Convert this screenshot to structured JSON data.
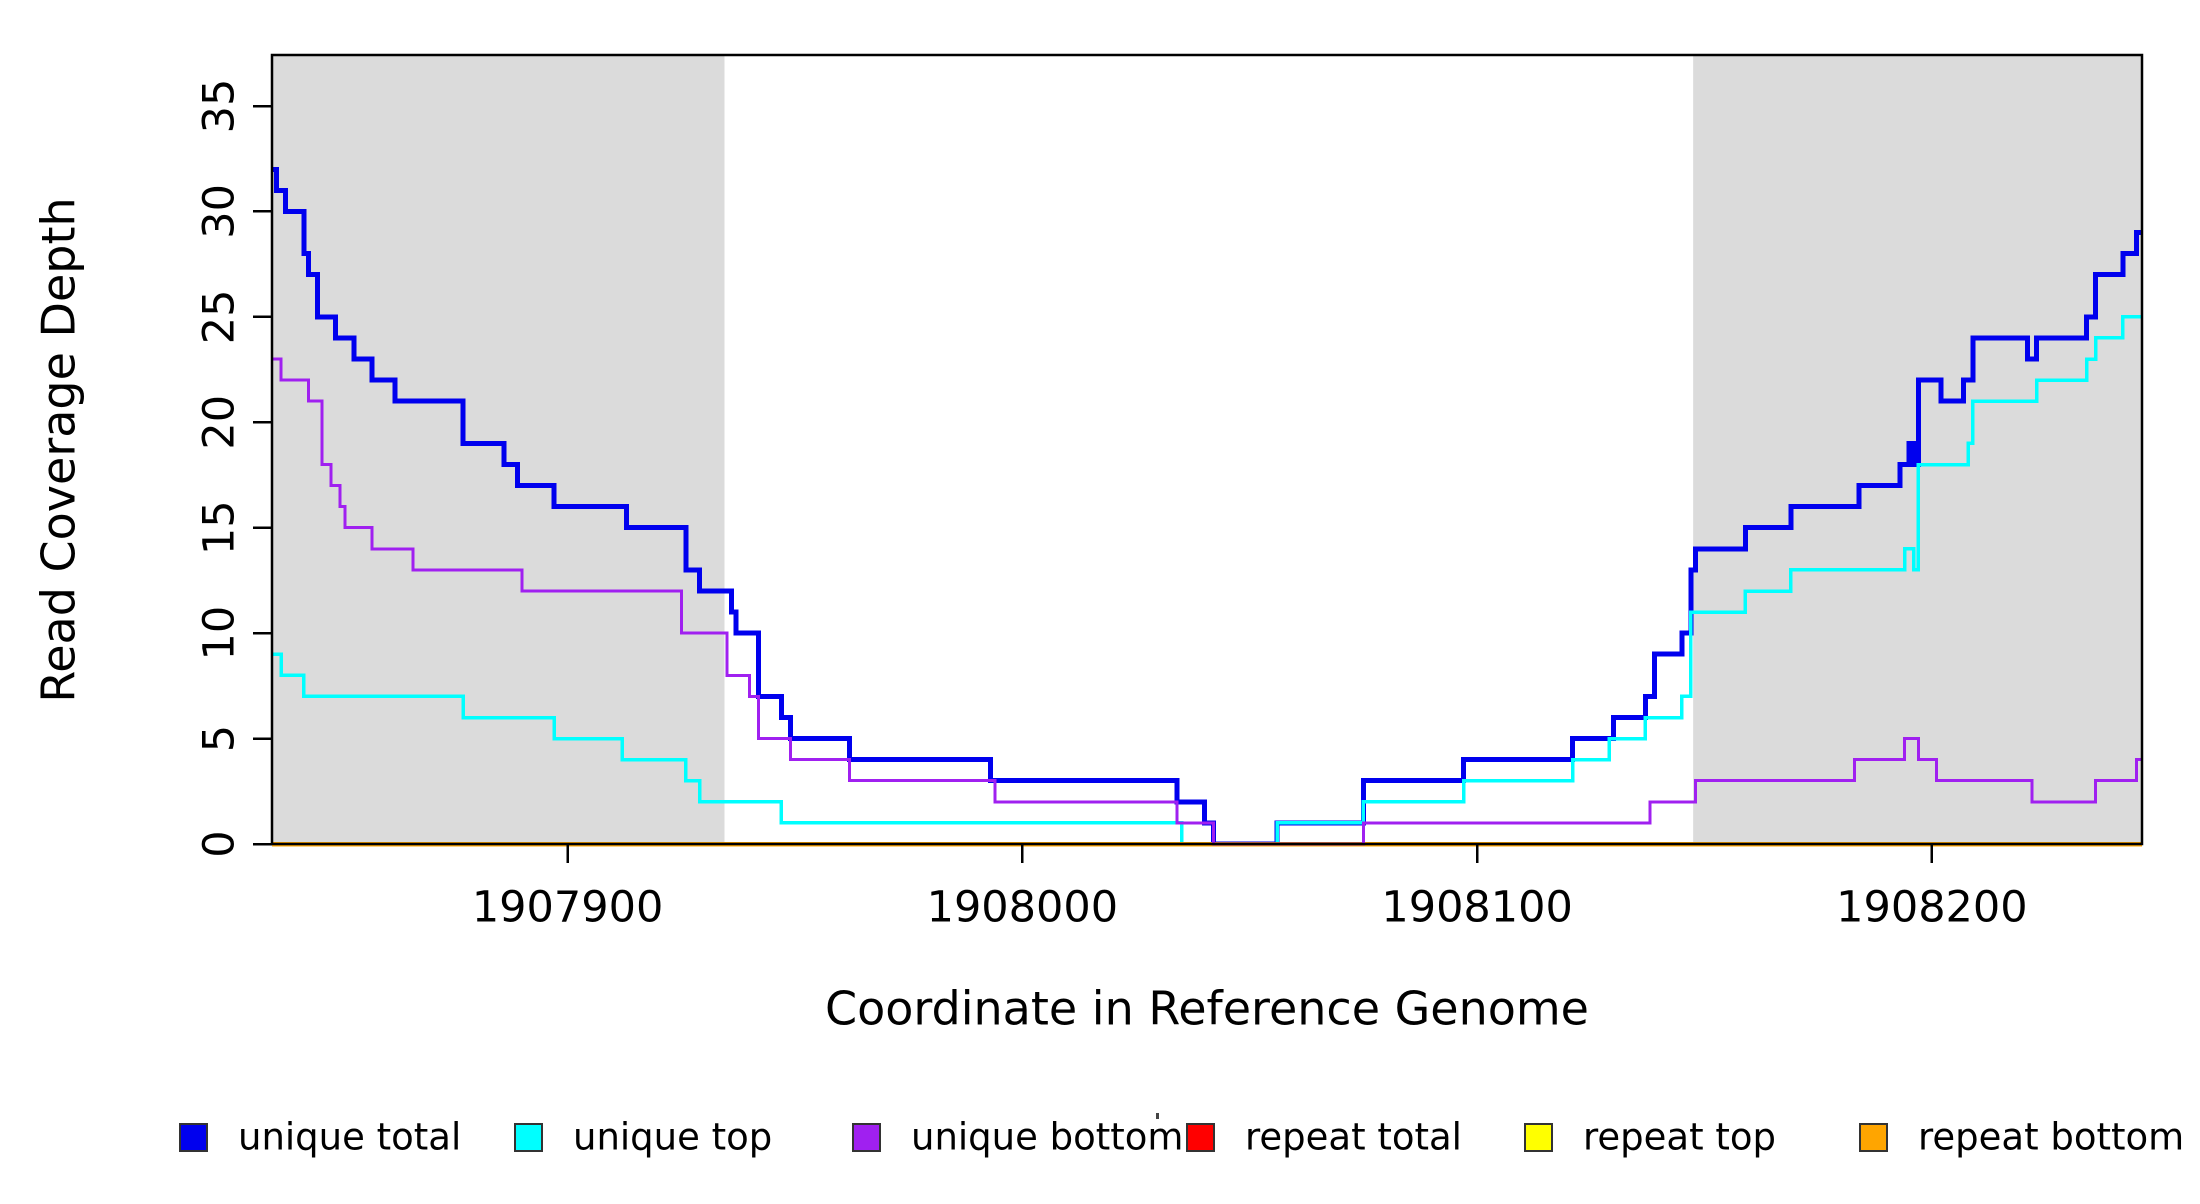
{
  "chart_data": {
    "type": "line",
    "subtype": "step-coverage-plot",
    "title": "",
    "xlabel": "Coordinate in Reference Genome",
    "ylabel": "Read Coverage Depth",
    "xlim": [
      1907835,
      1908246.2
    ],
    "ylim": [
      0,
      37.4
    ],
    "x_ticks": [
      1907900,
      1908000,
      1908100,
      1908200
    ],
    "x_tick_labels": [
      "1907900",
      "1908000",
      "1908100",
      "1908200"
    ],
    "y_ticks": [
      0,
      5,
      10,
      15,
      20,
      25,
      30,
      35
    ],
    "y_tick_labels": [
      "0",
      "5",
      "10",
      "15",
      "20",
      "25",
      "30",
      "35"
    ],
    "grid": false,
    "plot_background": "#ffffff",
    "box_color": "#000000",
    "legend_position": "bottom",
    "shaded_regions": [
      {
        "x0": 1907835,
        "x1": 1907934.5,
        "color": "#dbdbdb",
        "meaning": "shaded-band-left"
      },
      {
        "x0": 1908147.5,
        "x1": 1908246.2,
        "color": "#dbdbdb",
        "meaning": "shaded-band-right"
      }
    ],
    "series": [
      {
        "name": "unique total",
        "color": "#0000EE",
        "width": 5,
        "points": [
          [
            1907835,
            32
          ],
          [
            1907836,
            31
          ],
          [
            1907838,
            30
          ],
          [
            1907842,
            28
          ],
          [
            1907843,
            27
          ],
          [
            1907845,
            25
          ],
          [
            1907849,
            24
          ],
          [
            1907853,
            23
          ],
          [
            1907857,
            22
          ],
          [
            1907862,
            21
          ],
          [
            1907877,
            19
          ],
          [
            1907886,
            18
          ],
          [
            1907889,
            17
          ],
          [
            1907897,
            16
          ],
          [
            1907913,
            15
          ],
          [
            1907926,
            13
          ],
          [
            1907929,
            12
          ],
          [
            1907936,
            11
          ],
          [
            1907937,
            10
          ],
          [
            1907942,
            7
          ],
          [
            1907947,
            6
          ],
          [
            1907949,
            5
          ],
          [
            1907962,
            4
          ],
          [
            1907993,
            3
          ],
          [
            1908034,
            2
          ],
          [
            1908040,
            1
          ],
          [
            1908042,
            0
          ],
          [
            1908056,
            1
          ],
          [
            1908075,
            3
          ],
          [
            1908097,
            4
          ],
          [
            1908121,
            5
          ],
          [
            1908130,
            6
          ],
          [
            1908137,
            7
          ],
          [
            1908139,
            9
          ],
          [
            1908145,
            10
          ],
          [
            1908147,
            13
          ],
          [
            1908148,
            14
          ],
          [
            1908159,
            15
          ],
          [
            1908169,
            16
          ],
          [
            1908184,
            17
          ],
          [
            1908193,
            18
          ],
          [
            1908195,
            19
          ],
          [
            1908196,
            18
          ],
          [
            1908197,
            22
          ],
          [
            1908202,
            21
          ],
          [
            1908207,
            22
          ],
          [
            1908209,
            24
          ],
          [
            1908221,
            23
          ],
          [
            1908223,
            24
          ],
          [
            1908234,
            25
          ],
          [
            1908236,
            27
          ],
          [
            1908242,
            28
          ],
          [
            1908245,
            29
          ]
        ]
      },
      {
        "name": "unique top",
        "color": "#00FFFF",
        "width": 3.5,
        "points": [
          [
            1907835,
            9
          ],
          [
            1907837,
            8
          ],
          [
            1907842,
            7
          ],
          [
            1907877,
            6
          ],
          [
            1907897,
            5
          ],
          [
            1907912,
            4
          ],
          [
            1907926,
            3
          ],
          [
            1907929,
            2
          ],
          [
            1907947,
            1
          ],
          [
            1908035,
            0
          ],
          [
            1908056,
            1
          ],
          [
            1908075,
            2
          ],
          [
            1908097,
            3
          ],
          [
            1908121,
            4
          ],
          [
            1908129,
            5
          ],
          [
            1908137,
            6
          ],
          [
            1908145,
            7
          ],
          [
            1908147,
            11
          ],
          [
            1908159,
            12
          ],
          [
            1908169,
            13
          ],
          [
            1908194,
            14
          ],
          [
            1908196,
            13
          ],
          [
            1908197,
            18
          ],
          [
            1908208,
            19
          ],
          [
            1908209,
            21
          ],
          [
            1908223,
            22
          ],
          [
            1908234,
            23
          ],
          [
            1908236,
            24
          ],
          [
            1908242,
            25
          ]
        ]
      },
      {
        "name": "unique bottom",
        "color": "#A020F0",
        "width": 3,
        "points": [
          [
            1907835,
            23
          ],
          [
            1907837,
            22
          ],
          [
            1907843,
            21
          ],
          [
            1907846,
            18
          ],
          [
            1907848,
            17
          ],
          [
            1907850,
            16
          ],
          [
            1907851,
            15
          ],
          [
            1907857,
            14
          ],
          [
            1907866,
            13
          ],
          [
            1907890,
            12
          ],
          [
            1907925,
            10
          ],
          [
            1907935,
            8
          ],
          [
            1907940,
            7
          ],
          [
            1907942,
            5
          ],
          [
            1907949,
            4
          ],
          [
            1907962,
            3
          ],
          [
            1907994,
            2
          ],
          [
            1908034,
            1
          ],
          [
            1908042,
            0
          ],
          [
            1908075,
            1
          ],
          [
            1908138,
            2
          ],
          [
            1908148,
            3
          ],
          [
            1908183,
            4
          ],
          [
            1908194,
            5
          ],
          [
            1908197,
            4
          ],
          [
            1908201,
            3
          ],
          [
            1908222,
            2
          ],
          [
            1908236,
            3
          ],
          [
            1908245,
            4
          ]
        ]
      },
      {
        "name": "repeat total",
        "color": "#FF0000",
        "width": 3,
        "points": [
          [
            1907835,
            0
          ]
        ]
      },
      {
        "name": "repeat top",
        "color": "#FFFF00",
        "width": 3,
        "points": [
          [
            1907835,
            0
          ]
        ]
      },
      {
        "name": "repeat bottom",
        "color": "#FFA500",
        "width": 4.5,
        "points": [
          [
            1907835,
            0
          ]
        ]
      }
    ],
    "draw_order": [
      "unique total",
      "unique top",
      "repeat total",
      "repeat top",
      "repeat bottom",
      "unique bottom"
    ]
  },
  "legend": {
    "items": [
      {
        "label": "unique total",
        "color": "#0000EE"
      },
      {
        "label": "unique top",
        "color": "#00FFFF"
      },
      {
        "label": "unique bottom",
        "color": "#A020F0"
      },
      {
        "label": "repeat total",
        "color": "#FF0000"
      },
      {
        "label": "repeat top",
        "color": "#FFFF00"
      },
      {
        "label": "repeat bottom",
        "color": "#FFA500"
      }
    ]
  }
}
